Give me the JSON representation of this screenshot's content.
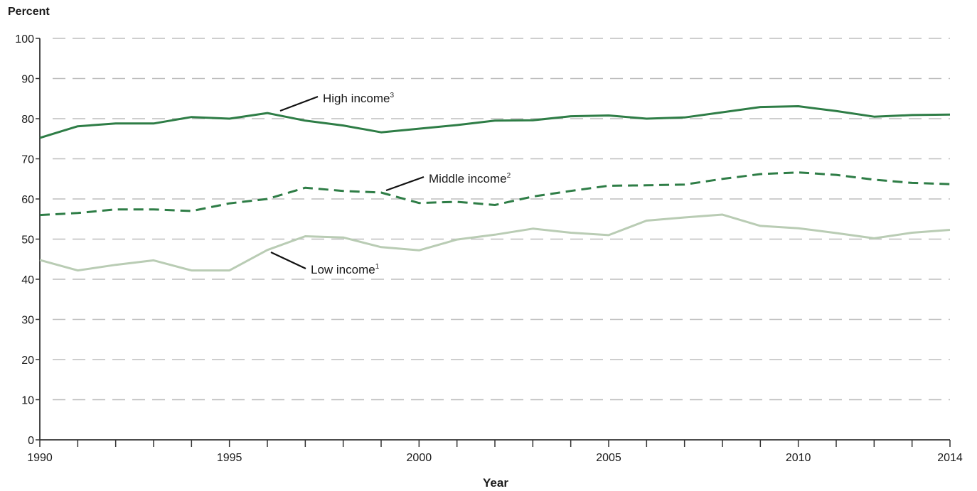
{
  "chart_data": {
    "type": "line",
    "ylabel": "Percent",
    "xlabel": "Year",
    "ylim": [
      0,
      100
    ],
    "xlim": [
      1990,
      2014
    ],
    "y_ticks": [
      0,
      10,
      20,
      30,
      40,
      50,
      60,
      70,
      80,
      90,
      100
    ],
    "x_tick_labels": [
      1990,
      1995,
      2000,
      2005,
      2010,
      2014
    ],
    "grid": true,
    "x": [
      1990,
      1991,
      1992,
      1993,
      1994,
      1995,
      1996,
      1997,
      1998,
      1999,
      2000,
      2001,
      2002,
      2003,
      2004,
      2005,
      2006,
      2007,
      2008,
      2009,
      2010,
      2011,
      2012,
      2013,
      2014
    ],
    "series": [
      {
        "name": "High income",
        "footnote": "3",
        "color": "#2e7d46",
        "style": "solid",
        "values": [
          75.2,
          78.1,
          78.8,
          78.8,
          80.4,
          80.0,
          81.4,
          79.5,
          78.3,
          76.6,
          77.5,
          78.4,
          79.5,
          79.6,
          80.6,
          80.8,
          80.0,
          80.3,
          81.6,
          82.9,
          83.1,
          81.9,
          80.5,
          80.9,
          81.0
        ]
      },
      {
        "name": "Middle income",
        "footnote": "2",
        "color": "#2e7d46",
        "style": "dashed",
        "values": [
          56.0,
          56.5,
          57.4,
          57.4,
          57.0,
          58.9,
          60.0,
          62.8,
          62.0,
          61.6,
          59.0,
          59.3,
          58.5,
          60.6,
          62.0,
          63.3,
          63.4,
          63.6,
          65.0,
          66.2,
          66.6,
          66.0,
          64.8,
          64.0,
          63.7
        ]
      },
      {
        "name": "Low income",
        "footnote": "1",
        "color": "#b9ccb4",
        "style": "solid",
        "values": [
          44.8,
          42.2,
          43.6,
          44.7,
          42.2,
          42.2,
          47.3,
          50.7,
          50.4,
          48.0,
          47.2,
          49.9,
          51.1,
          52.6,
          51.6,
          51.0,
          54.6,
          55.4,
          56.1,
          53.3,
          52.7,
          51.5,
          50.2,
          51.6,
          52.3
        ]
      }
    ]
  }
}
